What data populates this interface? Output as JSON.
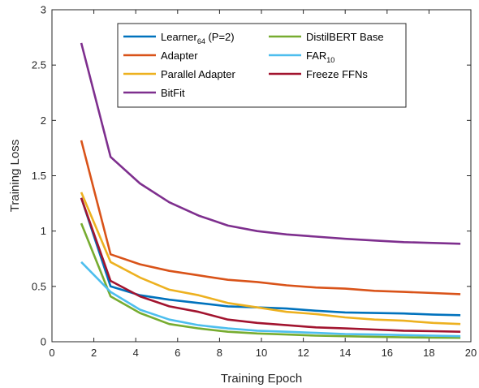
{
  "chart_data": {
    "type": "line",
    "title": "",
    "xlabel": "Training Epoch",
    "ylabel": "Training Loss",
    "xlim": [
      0,
      20
    ],
    "ylim": [
      0,
      3
    ],
    "xticks": [
      0,
      2,
      4,
      6,
      8,
      10,
      12,
      14,
      16,
      18,
      20
    ],
    "yticks": [
      0,
      0.5,
      1,
      1.5,
      2,
      2.5,
      3
    ],
    "xtick_labels": [
      "0",
      "2",
      "4",
      "6",
      "8",
      "10",
      "12",
      "14",
      "16",
      "18",
      "20"
    ],
    "ytick_labels": [
      "0",
      "0.5",
      "1",
      "1.5",
      "2",
      "2.5",
      "3"
    ],
    "grid": false,
    "legend_position": "top-center",
    "x": [
      1.4,
      2.8,
      4.2,
      5.6,
      7.0,
      8.4,
      9.8,
      11.2,
      12.6,
      14.0,
      15.4,
      16.8,
      18.2,
      19.5
    ],
    "series": [
      {
        "name": "Learner",
        "name_sub": "64",
        "name_suffix": " (P=2)",
        "color": "#0072BD",
        "values": [
          1.3,
          0.5,
          0.42,
          0.38,
          0.35,
          0.32,
          0.31,
          0.3,
          0.28,
          0.265,
          0.26,
          0.255,
          0.245,
          0.24
        ]
      },
      {
        "name": "Adapter",
        "color": "#D95319",
        "values": [
          1.82,
          0.79,
          0.7,
          0.64,
          0.6,
          0.56,
          0.54,
          0.51,
          0.49,
          0.48,
          0.46,
          0.45,
          0.44,
          0.43
        ]
      },
      {
        "name": "Parallel Adapter",
        "color": "#EDB120",
        "values": [
          1.35,
          0.72,
          0.58,
          0.47,
          0.42,
          0.35,
          0.31,
          0.27,
          0.25,
          0.22,
          0.2,
          0.19,
          0.17,
          0.16
        ]
      },
      {
        "name": "BitFit",
        "color": "#7E2F8E",
        "values": [
          2.7,
          1.67,
          1.43,
          1.26,
          1.14,
          1.05,
          1.0,
          0.97,
          0.95,
          0.93,
          0.915,
          0.9,
          0.893,
          0.885
        ]
      },
      {
        "name": "DistilBERT Base",
        "color": "#77AC30",
        "values": [
          1.07,
          0.41,
          0.26,
          0.16,
          0.12,
          0.09,
          0.075,
          0.065,
          0.055,
          0.05,
          0.045,
          0.04,
          0.037,
          0.035
        ]
      },
      {
        "name": "FAR",
        "name_sub": "10",
        "name_suffix": "",
        "color": "#4DBEEE",
        "values": [
          0.72,
          0.45,
          0.29,
          0.2,
          0.15,
          0.12,
          0.1,
          0.09,
          0.08,
          0.07,
          0.065,
          0.06,
          0.055,
          0.05
        ]
      },
      {
        "name": "Freeze FFNs",
        "color": "#A2142F",
        "values": [
          1.3,
          0.55,
          0.41,
          0.32,
          0.27,
          0.2,
          0.17,
          0.15,
          0.13,
          0.12,
          0.11,
          0.1,
          0.095,
          0.09
        ]
      }
    ]
  }
}
